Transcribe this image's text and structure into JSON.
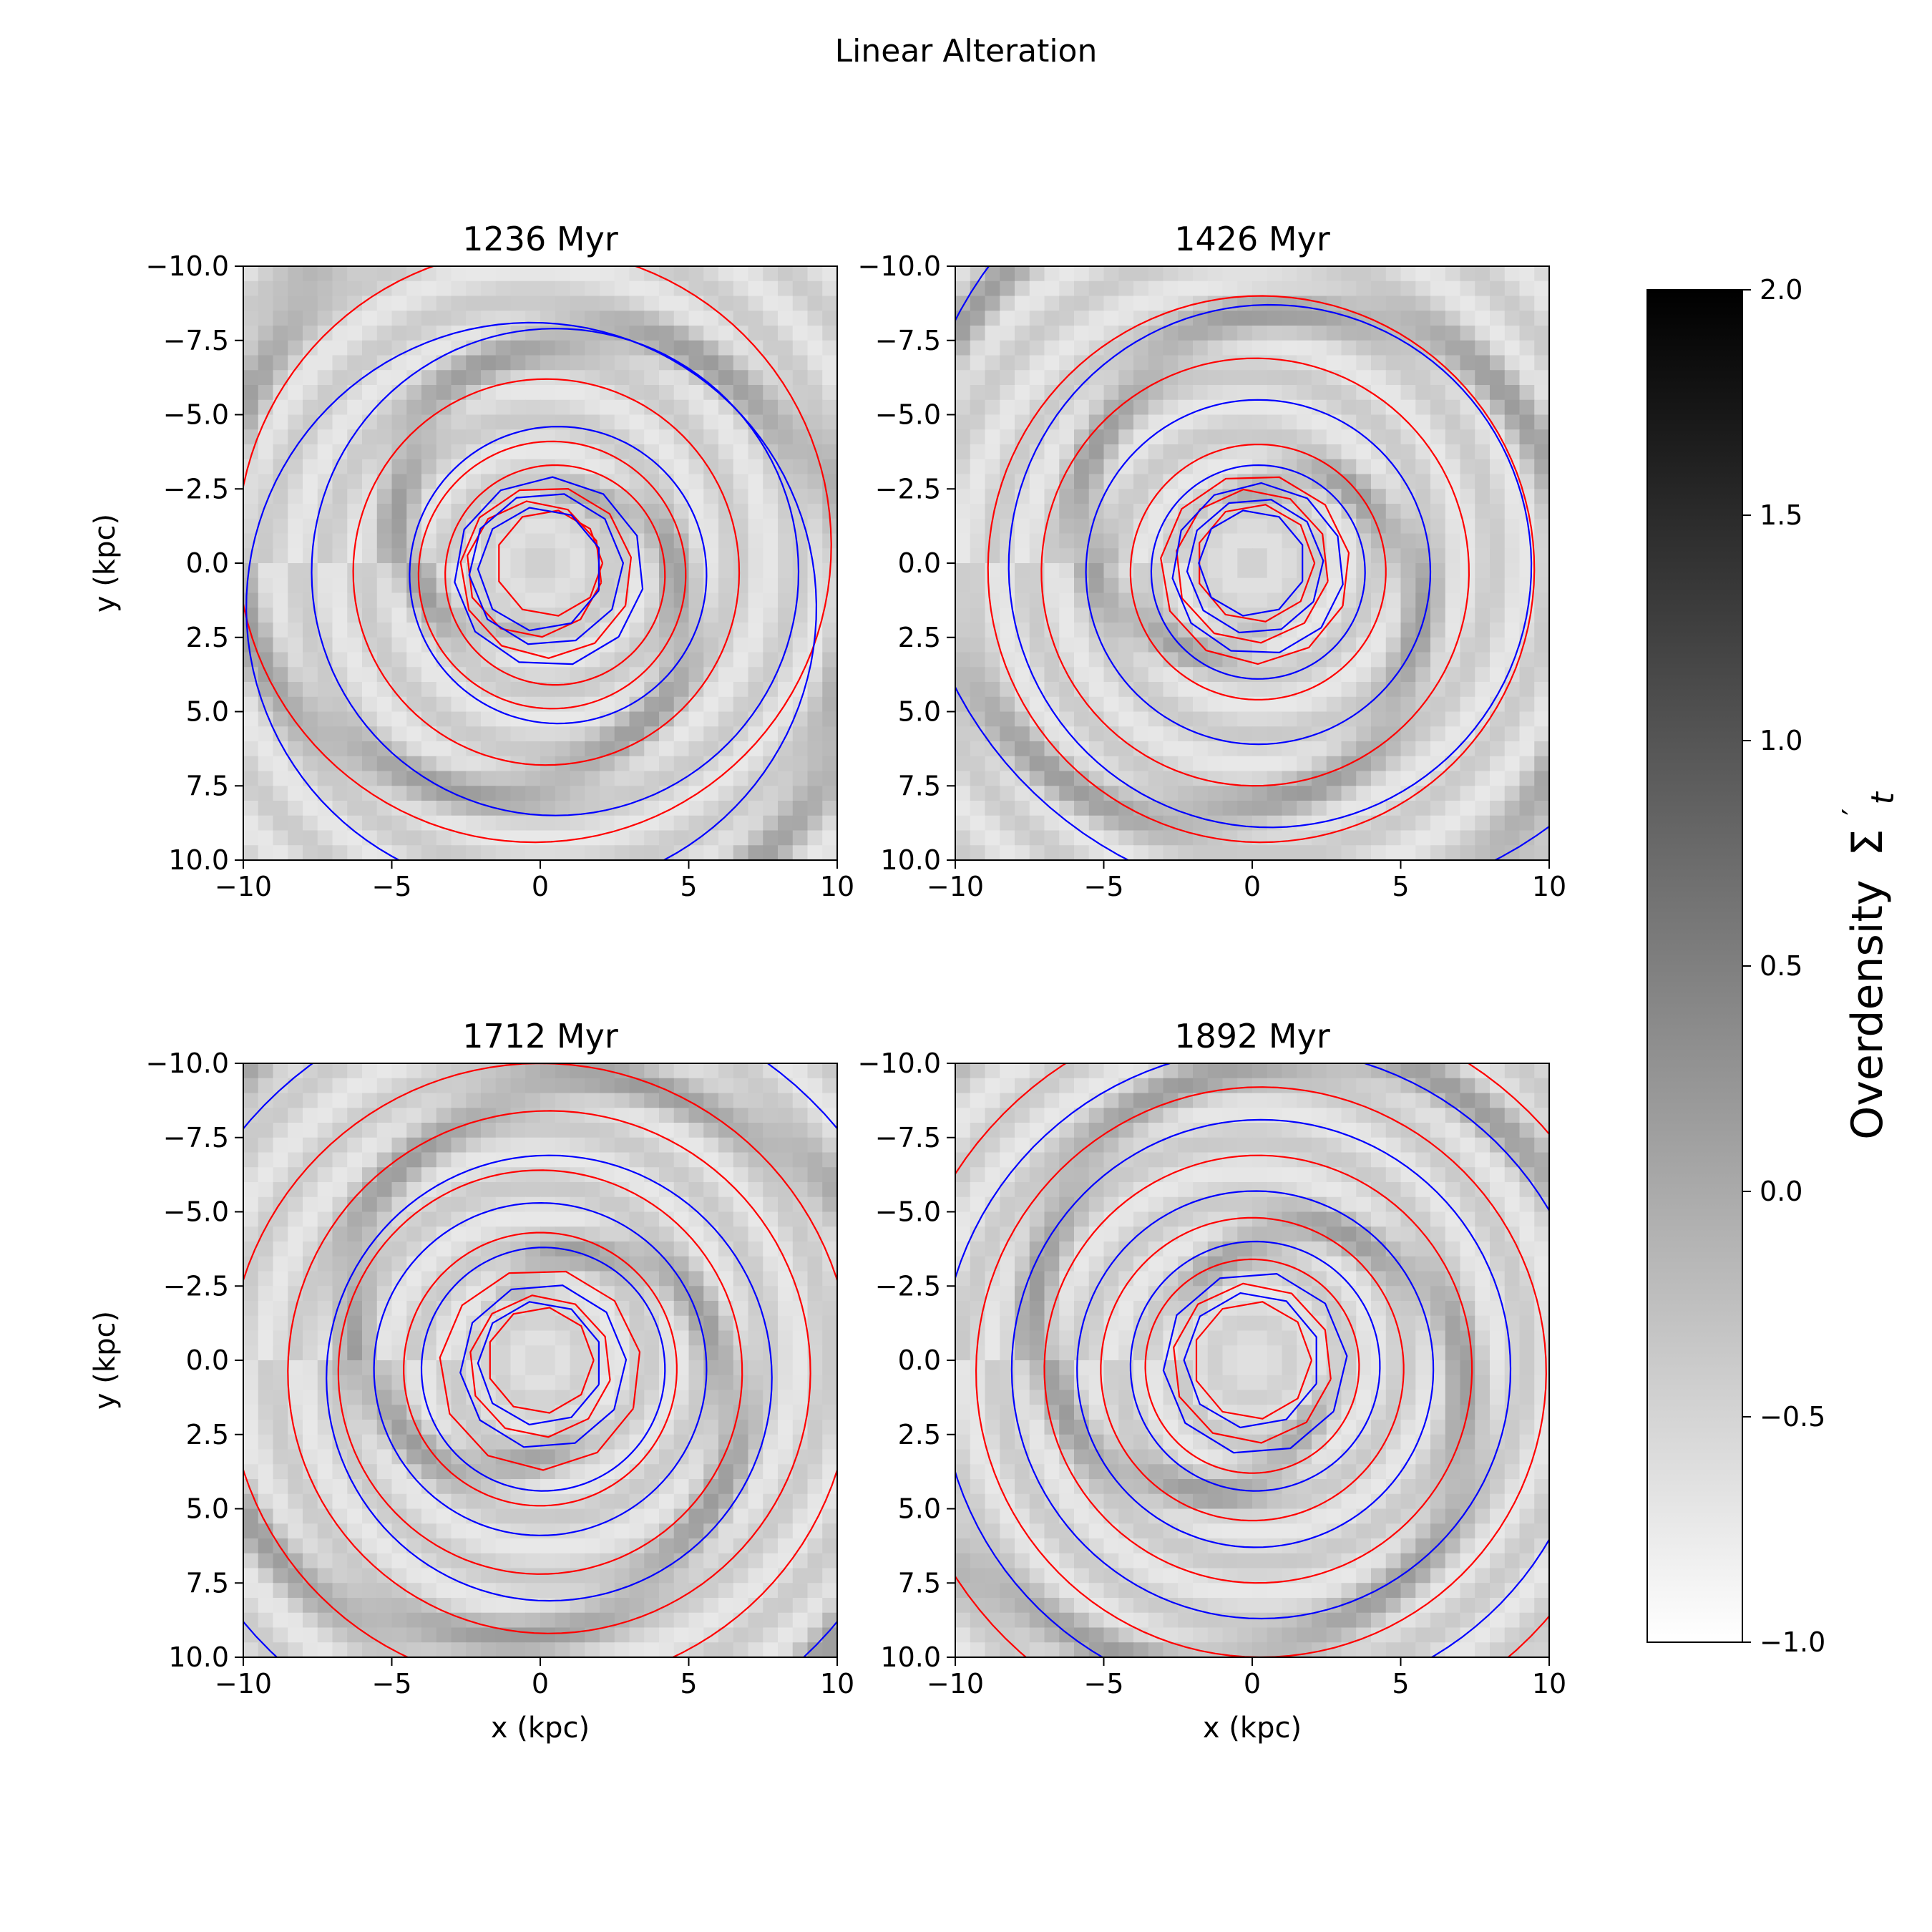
{
  "figure": {
    "title": "Linear Alteration"
  },
  "chart_data": [
    {
      "type": "heatmap",
      "title": "1236 Myr",
      "xlabel": "",
      "ylabel": "y (kpc)",
      "xlim": [
        -10,
        10
      ],
      "ylim": [
        -10,
        10
      ],
      "y_inverted": true,
      "xticks": [
        "−10",
        "−5",
        "0",
        "5",
        "10"
      ],
      "yticks": [
        "−10.0",
        "−7.5",
        "−5.0",
        "−2.5",
        "0.0",
        "2.5",
        "5.0",
        "7.5",
        "10.0"
      ],
      "colormap": "gray_r",
      "series": [
        {
          "color": "#ff0000",
          "loops": [
            {
              "cx": 0.3,
              "cy": 0.0,
              "r": 1.8
            },
            {
              "cx": -0.2,
              "cy": 0.2,
              "r": 2.3
            },
            {
              "cx": 0.2,
              "cy": 0.3,
              "r": 2.9
            },
            {
              "cx": 0.5,
              "cy": 0.4,
              "r": 3.7
            },
            {
              "cx": 0.4,
              "cy": 0.4,
              "r": 4.5
            },
            {
              "cx": 0.2,
              "cy": 0.3,
              "r": 6.5
            },
            {
              "cx": -0.2,
              "cy": -0.6,
              "r": 10.0
            }
          ]
        },
        {
          "color": "#0000ff",
          "loops": [
            {
              "cx": 0.0,
              "cy": 0.2,
              "r": 2.1
            },
            {
              "cx": 0.2,
              "cy": 0.2,
              "r": 2.6
            },
            {
              "cx": 0.3,
              "cy": 0.3,
              "r": 3.2
            },
            {
              "cx": 0.6,
              "cy": 0.4,
              "r": 5.0
            },
            {
              "cx": 0.5,
              "cy": 0.3,
              "r": 8.2
            },
            {
              "cx": -0.3,
              "cy": 1.5,
              "r": 9.6
            }
          ]
        }
      ]
    },
    {
      "type": "heatmap",
      "title": "1426 Myr",
      "xlabel": "",
      "ylabel": "",
      "xlim": [
        -10,
        10
      ],
      "ylim": [
        -10,
        10
      ],
      "y_inverted": true,
      "xticks": [
        "−10",
        "−5",
        "0",
        "5",
        "10"
      ],
      "yticks": [
        "−10.0",
        "−7.5",
        "−5.0",
        "−2.5",
        "0.0",
        "2.5",
        "5.0",
        "7.5",
        "10.0"
      ],
      "colormap": "gray_r",
      "series": [
        {
          "color": "#ff0000",
          "loops": [
            {
              "cx": 0.1,
              "cy": 0.0,
              "r": 2.0
            },
            {
              "cx": 0.0,
              "cy": 0.1,
              "r": 2.6
            },
            {
              "cx": 0.1,
              "cy": 0.2,
              "r": 3.2
            },
            {
              "cx": 0.2,
              "cy": 0.3,
              "r": 4.3
            },
            {
              "cx": 0.1,
              "cy": 0.3,
              "r": 7.2
            },
            {
              "cx": 0.3,
              "cy": 0.2,
              "r": 9.2
            }
          ]
        },
        {
          "color": "#0000ff",
          "loops": [
            {
              "cx": 0.0,
              "cy": 0.0,
              "r": 1.8
            },
            {
              "cx": 0.1,
              "cy": 0.1,
              "r": 2.3
            },
            {
              "cx": 0.2,
              "cy": 0.2,
              "r": 2.9
            },
            {
              "cx": 0.2,
              "cy": 0.3,
              "r": 3.6
            },
            {
              "cx": 0.2,
              "cy": 0.3,
              "r": 5.8
            },
            {
              "cx": 0.6,
              "cy": 0.1,
              "r": 8.8
            },
            {
              "cx": 2.0,
              "cy": -2.0,
              "r": 13.5
            }
          ]
        }
      ]
    },
    {
      "type": "heatmap",
      "title": "1712 Myr",
      "xlabel": "x (kpc)",
      "ylabel": "y (kpc)",
      "xlim": [
        -10,
        10
      ],
      "ylim": [
        -10,
        10
      ],
      "y_inverted": true,
      "xticks": [
        "−10",
        "−5",
        "0",
        "5",
        "10"
      ],
      "yticks": [
        "−10.0",
        "−7.5",
        "−5.0",
        "−2.5",
        "0.0",
        "2.5",
        "5.0",
        "7.5",
        "10.0"
      ],
      "colormap": "gray_r",
      "series": [
        {
          "color": "#ff0000",
          "loops": [
            {
              "cx": 0.0,
              "cy": 0.0,
              "r": 1.8
            },
            {
              "cx": 0.0,
              "cy": 0.2,
              "r": 2.4
            },
            {
              "cx": 0.0,
              "cy": 0.3,
              "r": 3.4
            },
            {
              "cx": 0.0,
              "cy": 0.3,
              "r": 4.6
            },
            {
              "cx": 0.0,
              "cy": 0.4,
              "r": 6.8
            },
            {
              "cx": 0.3,
              "cy": 0.4,
              "r": 8.8
            },
            {
              "cx": 0.0,
              "cy": 0.5,
              "r": 10.5
            }
          ]
        },
        {
          "color": "#0000ff",
          "loops": [
            {
              "cx": 0.0,
              "cy": 0.1,
              "r": 2.1
            },
            {
              "cx": 0.1,
              "cy": 0.2,
              "r": 2.8
            },
            {
              "cx": 0.1,
              "cy": 0.3,
              "r": 4.1
            },
            {
              "cx": 0.0,
              "cy": 0.3,
              "r": 5.6
            },
            {
              "cx": 0.3,
              "cy": 0.6,
              "r": 7.5
            },
            {
              "cx": 0.0,
              "cy": 0.5,
              "r": 13.0
            }
          ]
        }
      ]
    },
    {
      "type": "heatmap",
      "title": "1892 Myr",
      "xlabel": "x (kpc)",
      "ylabel": "",
      "xlim": [
        -10,
        10
      ],
      "ylim": [
        -10,
        10
      ],
      "y_inverted": true,
      "xticks": [
        "−10",
        "−5",
        "0",
        "5",
        "10"
      ],
      "yticks": [
        "−10.0",
        "−7.5",
        "−5.0",
        "−2.5",
        "0.0",
        "2.5",
        "5.0",
        "7.5",
        "10.0"
      ],
      "colormap": "gray_r",
      "series": [
        {
          "color": "#ff0000",
          "loops": [
            {
              "cx": 0.0,
              "cy": 0.0,
              "r": 2.0
            },
            {
              "cx": 0.0,
              "cy": 0.1,
              "r": 2.7
            },
            {
              "cx": 0.0,
              "cy": 0.2,
              "r": 3.6
            },
            {
              "cx": 0.0,
              "cy": 0.3,
              "r": 5.1
            },
            {
              "cx": 0.2,
              "cy": 0.3,
              "r": 7.2
            },
            {
              "cx": 0.3,
              "cy": 0.4,
              "r": 9.6
            },
            {
              "cx": 0.5,
              "cy": 0.5,
              "r": 12.5
            }
          ]
        },
        {
          "color": "#0000ff",
          "loops": [
            {
              "cx": 0.0,
              "cy": 0.0,
              "r": 2.3
            },
            {
              "cx": 0.1,
              "cy": 0.1,
              "r": 3.1
            },
            {
              "cx": 0.1,
              "cy": 0.2,
              "r": 4.2
            },
            {
              "cx": 0.1,
              "cy": 0.3,
              "r": 6.0
            },
            {
              "cx": 0.3,
              "cy": 0.3,
              "r": 8.4
            },
            {
              "cx": 0.5,
              "cy": 0.5,
              "r": 11.0
            }
          ]
        }
      ]
    }
  ],
  "colorbar": {
    "label": "Overdensity",
    "symbol": "Σ",
    "subscript": "t",
    "prime": "′",
    "vmin": -1.0,
    "vmax": 2.0,
    "ticks": [
      {
        "value": 2.0,
        "label": "2.0"
      },
      {
        "value": 1.5,
        "label": "1.5"
      },
      {
        "value": 1.0,
        "label": "1.0"
      },
      {
        "value": 0.5,
        "label": "0.5"
      },
      {
        "value": 0.0,
        "label": "0.0"
      },
      {
        "value": -0.5,
        "label": "−0.5"
      },
      {
        "value": -1.0,
        "label": "−1.0"
      }
    ]
  }
}
